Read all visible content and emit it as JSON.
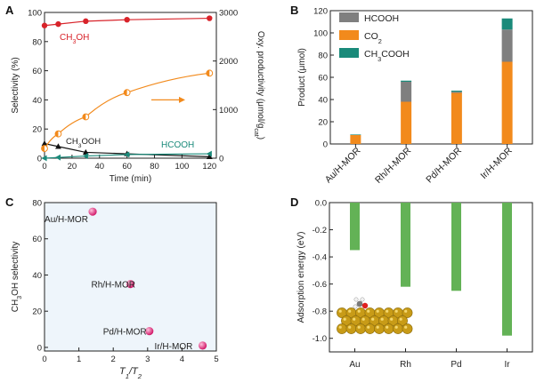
{
  "colors": {
    "red": "#d8232a",
    "orange": "#f28a1c",
    "black": "#111111",
    "teal": "#1a8a7a",
    "gray": "#7f7f7f",
    "magenta": "#d21a6a",
    "green": "#63b256",
    "panel_bg": "#eef5fb"
  },
  "chart_data": [
    {
      "panel": "A",
      "type": "line",
      "xlabel": "Time (min)",
      "ylabel": "Selectivity (%)",
      "y2label": "Oxy. productivity (μmol/g_cat)",
      "x": [
        0,
        10,
        30,
        60,
        120
      ],
      "xlim": [
        0,
        125
      ],
      "xticks": [
        "0",
        "20",
        "40",
        "60",
        "80",
        "100",
        "120"
      ],
      "ylim": [
        0,
        100
      ],
      "yticks": [
        "0",
        "20",
        "40",
        "60",
        "80",
        "100"
      ],
      "y2lim": [
        0,
        3000
      ],
      "y2ticks": [
        "0",
        "1000",
        "2000",
        "3000"
      ],
      "series": [
        {
          "name": "CH3OH",
          "axis": "left",
          "values": [
            91,
            92,
            94,
            95,
            96
          ]
        },
        {
          "name": "CH3OOH",
          "axis": "left",
          "values": [
            10,
            8,
            4,
            3,
            1
          ]
        },
        {
          "name": "HCOOH",
          "axis": "left",
          "values": [
            0,
            0.5,
            1.5,
            2.5,
            3
          ]
        },
        {
          "name": "Oxy. productivity",
          "axis": "right",
          "values": [
            200,
            500,
            850,
            1350,
            1750
          ]
        }
      ],
      "annotations": {
        "ch3oh": "CH₃OH",
        "ch3ooh": "CH₃OOH",
        "hcooh": "HCOOH"
      }
    },
    {
      "panel": "B",
      "type": "bar",
      "stacked": true,
      "ylabel": "Product (μmol)",
      "categories": [
        "Au/H-MOR",
        "Rh/H-MOR",
        "Pd/H-MOR",
        "Ir/H-MOR"
      ],
      "ylim": [
        0,
        120
      ],
      "yticks": [
        "0",
        "20",
        "40",
        "60",
        "80",
        "100",
        "120"
      ],
      "series": [
        {
          "name": "CO2",
          "values": [
            8,
            38,
            46,
            74
          ]
        },
        {
          "name": "HCOOH",
          "values": [
            0,
            18,
            1,
            29
          ]
        },
        {
          "name": "CH3COOH",
          "values": [
            0.5,
            1,
            1,
            10
          ]
        }
      ],
      "legend": [
        "HCOOH",
        "CO₂",
        "CH₃COOH"
      ]
    },
    {
      "panel": "C",
      "type": "scatter",
      "xlabel": "T1/T2",
      "ylabel": "CH₃OH selectivity",
      "xlim": [
        0,
        5
      ],
      "xticks": [
        "0",
        "1",
        "2",
        "3",
        "4",
        "5"
      ],
      "ylim": [
        -2,
        80
      ],
      "yticks": [
        "0",
        "20",
        "40",
        "60",
        "80"
      ],
      "points": [
        {
          "label": "Au/H-MOR",
          "x": 1.4,
          "y": 75
        },
        {
          "label": "Rh/H-MOR",
          "x": 2.5,
          "y": 35
        },
        {
          "label": "Pd/H-MOR",
          "x": 3.05,
          "y": 9
        },
        {
          "label": "Ir/H-MOR",
          "x": 4.6,
          "y": 1
        }
      ]
    },
    {
      "panel": "D",
      "type": "bar",
      "ylabel": "Adsorption energy (eV)",
      "categories": [
        "Au",
        "Rh",
        "Pd",
        "Ir"
      ],
      "values": [
        -0.35,
        -0.62,
        -0.65,
        -0.98
      ],
      "ylim": [
        -1.1,
        0
      ],
      "yticks": [
        "0.0",
        "-0.2",
        "-0.4",
        "-0.6",
        "-0.8",
        "-1.0"
      ]
    }
  ]
}
